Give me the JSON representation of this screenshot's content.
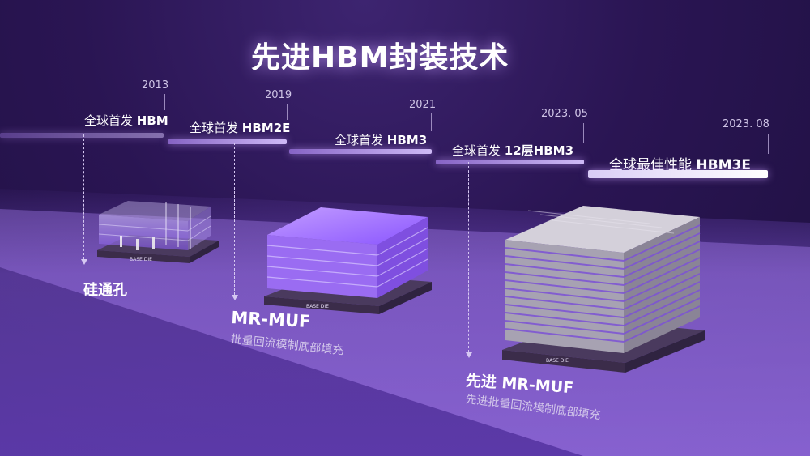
{
  "title": "先进HBM封装技术",
  "milestones": [
    {
      "year": "2013",
      "label_prefix": "全球首发 ",
      "label_bold": "HBM"
    },
    {
      "year": "2019",
      "label_prefix": "全球首发 ",
      "label_bold": "HBM2E"
    },
    {
      "year": "2021",
      "label_prefix": "全球首发 ",
      "label_bold": "HBM3"
    },
    {
      "year": "2023. 05",
      "label_prefix": "全球首发 ",
      "label_bold": "12层HBM3"
    },
    {
      "year": "2023. 08",
      "label_prefix": "全球最佳性能 ",
      "label_bold": "HBM3E"
    }
  ],
  "technologies": [
    {
      "title": "硅通孔",
      "subtitle": ""
    },
    {
      "title": "MR-MUF",
      "subtitle": "批量回流模制底部填充"
    },
    {
      "title": "先进 MR-MUF",
      "subtitle": "先进批量回流模制底部填充"
    }
  ],
  "base_die_label": "BASE DIE",
  "colors": {
    "accent": "#8a55ff",
    "background": "#2a1553"
  }
}
